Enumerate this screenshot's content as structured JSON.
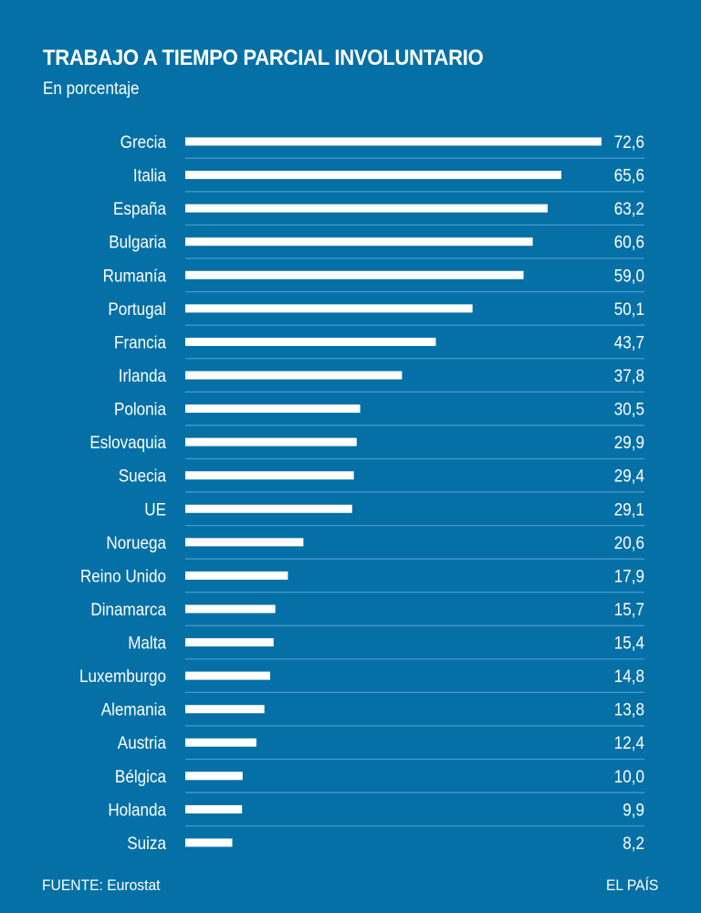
{
  "chart_data": {
    "type": "bar",
    "orientation": "horizontal",
    "title": "TRABAJO A TIEMPO PARCIAL INVOLUNTARIO",
    "subtitle": "En porcentaje",
    "xlabel": "",
    "ylabel": "",
    "categories": [
      "Grecia",
      "Italia",
      "España",
      "Bulgaria",
      "Rumanía",
      "Portugal",
      "Francia",
      "Irlanda",
      "Polonia",
      "Eslovaquia",
      "Suecia",
      "UE",
      "Noruega",
      "Reino Unido",
      "Dinamarca",
      "Malta",
      "Luxemburgo",
      "Alemania",
      "Austria",
      "Bélgica",
      "Holanda",
      "Suiza"
    ],
    "values": [
      72.6,
      65.6,
      63.2,
      60.6,
      59.0,
      50.1,
      43.7,
      37.8,
      30.5,
      29.9,
      29.4,
      29.1,
      20.6,
      17.9,
      15.7,
      15.4,
      14.8,
      13.8,
      12.4,
      10.0,
      9.9,
      8.2
    ],
    "value_labels": [
      "72,6",
      "65,6",
      "63,2",
      "60,6",
      "59,0",
      "50,1",
      "43,7",
      "37,8",
      "30,5",
      "29,9",
      "29,4",
      "29,1",
      "20,6",
      "17,9",
      "15,7",
      "15,4",
      "14,8",
      "13,8",
      "12,4",
      "10,0",
      "9,9",
      "8,2"
    ],
    "xlim": [
      0,
      72.6
    ],
    "grid": false,
    "legend": "none",
    "colors": {
      "background": "#0570a6",
      "bar": "#ffffff",
      "separator": "#4a9dcf",
      "text": "#ffffff"
    }
  },
  "footer": {
    "source": "FUENTE: Eurostat",
    "credit": "EL PAÍS"
  }
}
